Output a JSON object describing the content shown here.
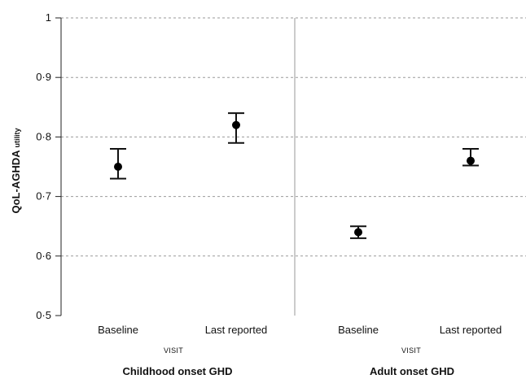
{
  "chart_data": {
    "type": "scatter",
    "y_axis": {
      "label_main": "QoL-AGHDA",
      "label_sub": "utility",
      "range": [
        0.5,
        1.0
      ],
      "ticks": [
        {
          "value": 0.5,
          "label": "0·5"
        },
        {
          "value": 0.6,
          "label": "0·6"
        },
        {
          "value": 0.7,
          "label": "0·7"
        },
        {
          "value": 0.8,
          "label": "0·8"
        },
        {
          "value": 0.9,
          "label": "0·9"
        },
        {
          "value": 1.0,
          "label": "1"
        }
      ],
      "grid": "dashed"
    },
    "x_axis_label": "VISIT",
    "groups": [
      {
        "name": "Childhood onset GHD",
        "points": [
          {
            "category": "Baseline",
            "mean": 0.75,
            "low": 0.73,
            "high": 0.78
          },
          {
            "category": "Last reported",
            "mean": 0.82,
            "low": 0.79,
            "high": 0.84
          }
        ]
      },
      {
        "name": "Adult onset GHD",
        "points": [
          {
            "category": "Baseline",
            "mean": 0.64,
            "low": 0.63,
            "high": 0.65
          },
          {
            "category": "Last reported",
            "mean": 0.76,
            "low": 0.752,
            "high": 0.78
          }
        ]
      }
    ]
  }
}
